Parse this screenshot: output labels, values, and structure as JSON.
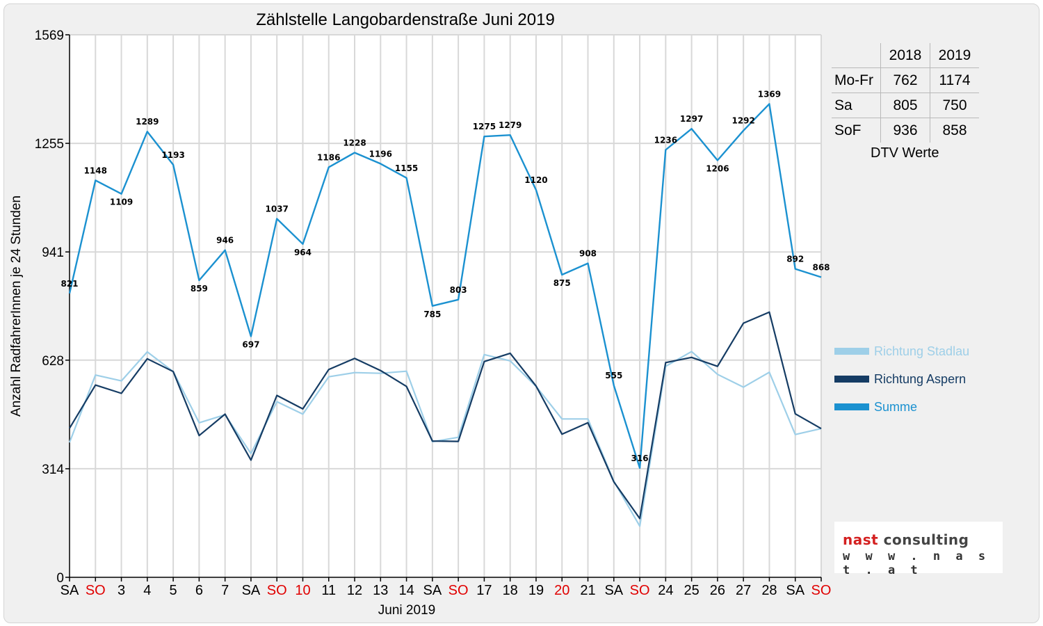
{
  "chart_data": {
    "type": "line",
    "title": "Zählstelle Langobardenstraße Juni 2019",
    "xlabel": "Juni 2019",
    "ylabel": "Anzahl RadfahrerInnen je 24 Stunden",
    "ylim": [
      0,
      1569
    ],
    "yticks": [
      0,
      314,
      628,
      941,
      1255,
      1569
    ],
    "grid": true,
    "legend_position": "right",
    "categories": [
      "SA",
      "SO",
      "3",
      "4",
      "5",
      "6",
      "7",
      "SA",
      "SO",
      "10",
      "11",
      "12",
      "13",
      "14",
      "SA",
      "SO",
      "17",
      "18",
      "19",
      "20",
      "21",
      "SA",
      "SO",
      "24",
      "25",
      "26",
      "27",
      "28",
      "SA",
      "SO"
    ],
    "red_categories": [
      1,
      8,
      9,
      15,
      19,
      22,
      29
    ],
    "series": [
      {
        "name": "Richtung Stadlau",
        "color": "#9ecfe8",
        "values": [
          390,
          585,
          568,
          652,
          595,
          447,
          470,
          358,
          508,
          472,
          580,
          592,
          590,
          596,
          392,
          405,
          644,
          626,
          552,
          458,
          458,
          278,
          148,
          610,
          653,
          587,
          550,
          593,
          413,
          430
        ]
      },
      {
        "name": "Richtung Aspern",
        "color": "#153c64",
        "values": [
          431,
          556,
          532,
          632,
          595,
          410,
          472,
          339,
          526,
          487,
          601,
          633,
          598,
          552,
          394,
          393,
          624,
          648,
          553,
          414,
          447,
          276,
          170,
          621,
          636,
          610,
          735,
          767,
          473,
          430
        ]
      },
      {
        "name": "Summe",
        "color": "#1b91d0",
        "values": [
          821,
          1148,
          1109,
          1289,
          1193,
          859,
          946,
          697,
          1037,
          964,
          1186,
          1228,
          1196,
          1155,
          785,
          803,
          1275,
          1279,
          1120,
          875,
          908,
          555,
          316,
          1236,
          1297,
          1206,
          1292,
          1369,
          892,
          868
        ]
      }
    ],
    "data_labels": [
      "821",
      "1148",
      "1109",
      "1289",
      "1193",
      "859",
      "946",
      "697",
      "1037",
      "964",
      "1186",
      "1228",
      "1196",
      "1155",
      "785",
      "803",
      "1275",
      "1279",
      "1120",
      "875",
      "908",
      "555",
      "316",
      "1236",
      "1297",
      "1206",
      "1292",
      "1369",
      "892",
      "868"
    ]
  },
  "dtv_table": {
    "columns": [
      "2018",
      "2019"
    ],
    "rows": [
      {
        "label": "Mo-Fr",
        "v2018": "762",
        "v2019": "1174"
      },
      {
        "label": "Sa",
        "v2018": "805",
        "v2019": "750"
      },
      {
        "label": "SoF",
        "v2018": "936",
        "v2019": "858"
      }
    ],
    "caption": "DTV Werte"
  },
  "logo": {
    "brand_red": "nast",
    "brand_grey": "consulting",
    "url": "w w w . n a s t . a t"
  },
  "colors": {
    "stadlau": "#9ecfe8",
    "aspern": "#153c64",
    "summe": "#1b91d0",
    "weekend_red": "#e00000"
  }
}
